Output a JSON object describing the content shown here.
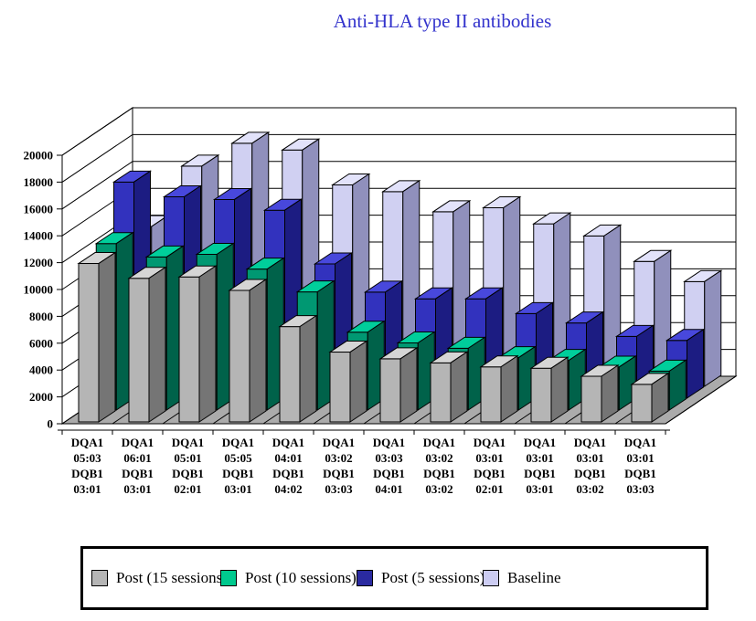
{
  "title": {
    "text": "Anti-HLA type II antibodies",
    "color": "#3333cc"
  },
  "chart_data": {
    "type": "bar",
    "projection": "3d-depth-series",
    "title": "Anti-HLA type II antibodies",
    "xlabel": "",
    "ylabel": "",
    "grid": true,
    "legend_position": "bottom",
    "y_axis": {
      "min": 0,
      "max": 20000,
      "step": 2000,
      "tick_labels": [
        "0",
        "2000",
        "4000",
        "6000",
        "8000",
        "10000",
        "12000",
        "14000",
        "16000",
        "18000",
        "20000"
      ]
    },
    "categories": [
      [
        "DQA1",
        "05:03",
        "DQB1",
        "03:01"
      ],
      [
        "DQA1",
        "06:01",
        "DQB1",
        "03:01"
      ],
      [
        "DQA1",
        "05:01",
        "DQB1",
        "02:01"
      ],
      [
        "DQA1",
        "05:05",
        "DQB1",
        "03:01"
      ],
      [
        "DQA1",
        "04:01",
        "DQB1",
        "04:02"
      ],
      [
        "DQA1",
        "03:02",
        "DQB1",
        "03:03"
      ],
      [
        "DQA1",
        "03:03",
        "DQB1",
        "04:01"
      ],
      [
        "DQA1",
        "03:02",
        "DQB1",
        "03:02"
      ],
      [
        "DQA1",
        "03:01",
        "DQB1",
        "02:01"
      ],
      [
        "DQA1",
        "03:01",
        "DQB1",
        "03:01"
      ],
      [
        "DQA1",
        "03:01",
        "DQB1",
        "03:02"
      ],
      [
        "DQA1",
        "03:01",
        "DQB1",
        "03:03"
      ]
    ],
    "series": [
      {
        "name": "Post (15 sessions)",
        "color": "#b5b5b5",
        "top_color": "#d5d5d5",
        "side_color": "#757575",
        "legend_color": "#b5b5b5",
        "values": [
          11800,
          10700,
          10800,
          9800,
          7100,
          5200,
          4700,
          4400,
          4100,
          4000,
          3400,
          2800
        ]
      },
      {
        "name": "Post (10 sessions)",
        "color": "#009872",
        "top_color": "#00ce9b",
        "side_color": "#00624a",
        "legend_color": "#00c98e",
        "values": [
          12400,
          11400,
          11600,
          10500,
          8800,
          5800,
          5000,
          4600,
          3900,
          3700,
          3200,
          2900
        ]
      },
      {
        "name": "Post (5 sessions)",
        "color": "#3232be",
        "top_color": "#4848dc",
        "side_color": "#1c1c82",
        "legend_color": "#2a2aa0",
        "values": [
          16100,
          15000,
          14800,
          14000,
          10000,
          7900,
          7400,
          7400,
          6300,
          5600,
          4600,
          4300
        ]
      },
      {
        "name": "Baseline",
        "color": "#d0d0f2",
        "top_color": "#e2e2fa",
        "side_color": "#9090bc",
        "legend_color": "#ccccf2",
        "values": [
          11900,
          16400,
          18100,
          17600,
          15000,
          14500,
          13000,
          13300,
          12100,
          11200,
          9300,
          7800
        ]
      }
    ]
  },
  "axes_style": {
    "wall_color": "#ffffff",
    "floor_color": "#ababab",
    "line_color": "#000000"
  }
}
